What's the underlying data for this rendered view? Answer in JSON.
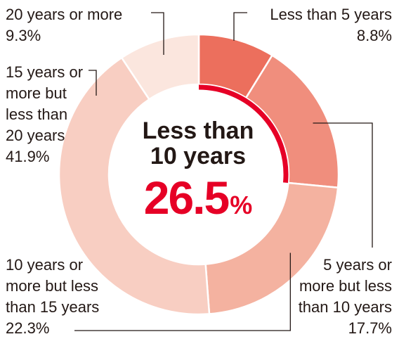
{
  "chart_data": {
    "type": "pie",
    "variant": "donut",
    "start": "top, clockwise",
    "categories": [
      "Less than 5 years",
      "5 years or more but less than 10 years",
      "10 years or more but less than 15 years",
      "15 years or more but less than 20 years",
      "20 years or more"
    ],
    "values": [
      8.8,
      17.7,
      22.3,
      41.9,
      9.3
    ],
    "value_labels": [
      "8.8%",
      "17.7%",
      "22.3%",
      "41.9%",
      "9.3%"
    ],
    "label_lines": [
      [
        "Less than 5 years"
      ],
      [
        "5 years or",
        "more but less",
        "than 10 years"
      ],
      [
        "10 years or",
        "more but less",
        "than 15 years"
      ],
      [
        "15 years or",
        "more but",
        "less than",
        "20 years"
      ],
      [
        "20 years or more"
      ]
    ],
    "colors": [
      "#ec6f5d",
      "#f08e7d",
      "#f4b2a0",
      "#f8cec2",
      "#fbe6de"
    ],
    "highlight": {
      "title_lines": [
        "Less than",
        "10 years"
      ],
      "value": "26.5",
      "unit": "%",
      "color": "#e60026",
      "covers": [
        0,
        1
      ]
    },
    "leader_line_color": "#231815"
  }
}
